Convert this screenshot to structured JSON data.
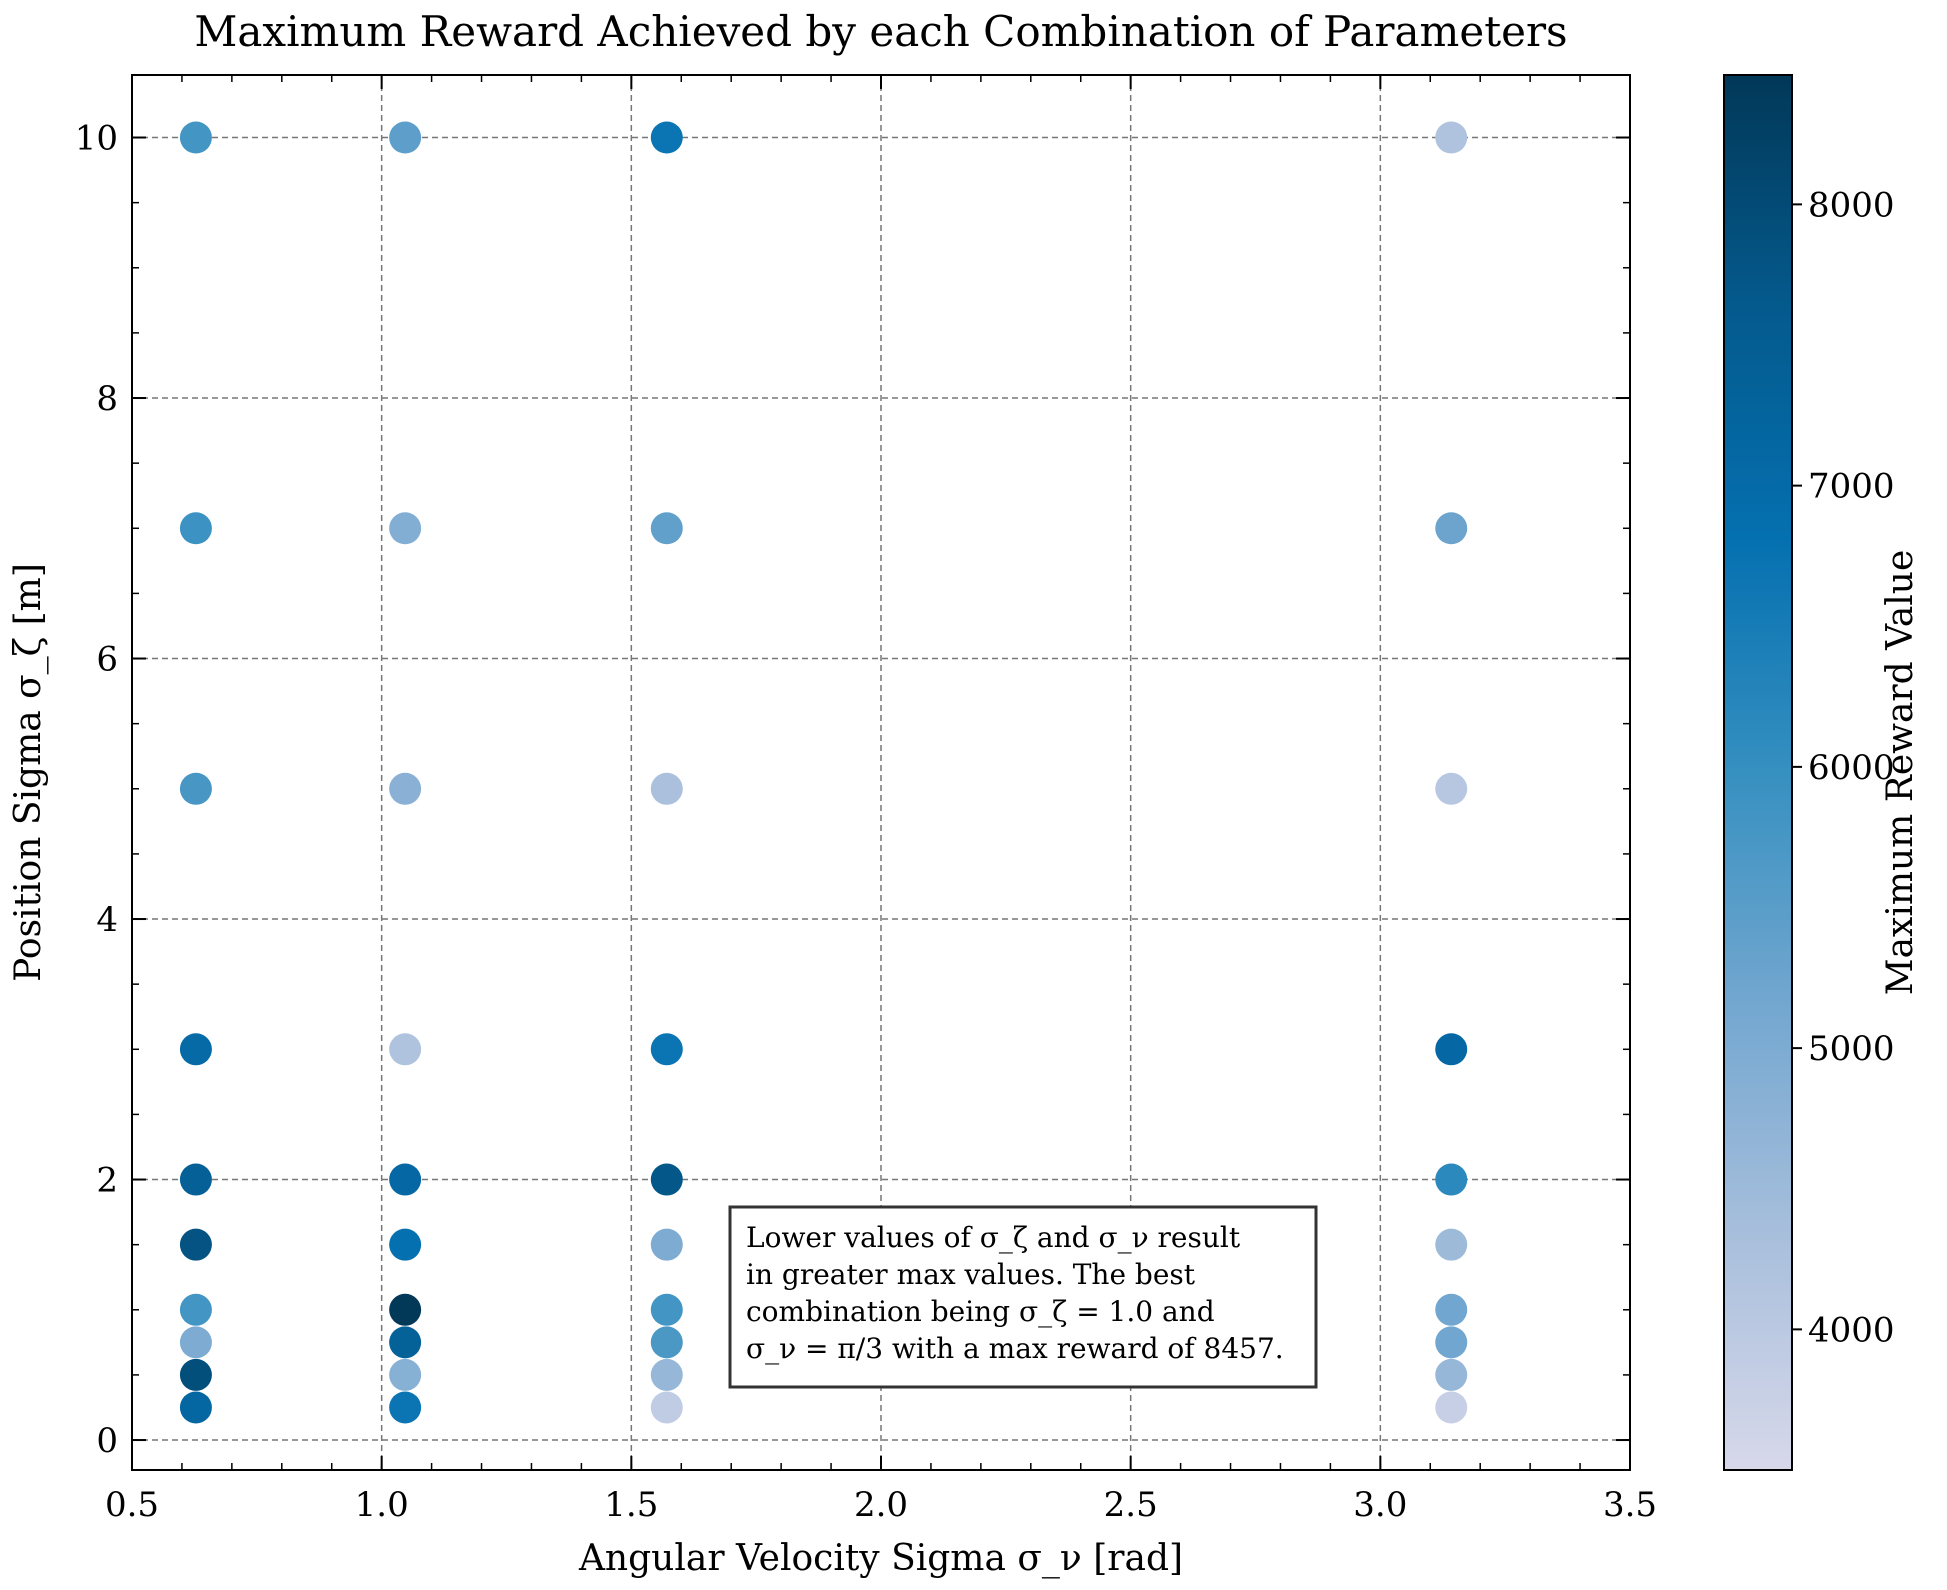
{
  "chart_data": {
    "type": "scatter",
    "title": "Maximum Reward Achieved by each Combination of Parameters",
    "xlabel": "Angular Velocity Sigma σ_ν [rad]",
    "ylabel": "Position Sigma σ_ζ [m]",
    "xlim": [
      0.5,
      3.5
    ],
    "ylim": [
      -0.23,
      10.48
    ],
    "xticks": [
      0.5,
      1.0,
      1.5,
      2.0,
      2.5,
      3.0,
      3.5
    ],
    "xtick_labels": [
      "0.5",
      "1.0",
      "1.5",
      "2.0",
      "2.5",
      "3.0",
      "3.5"
    ],
    "yticks": [
      0,
      2,
      4,
      6,
      8,
      10
    ],
    "ytick_labels": [
      "0",
      "2",
      "4",
      "6",
      "8",
      "10"
    ],
    "grid": true,
    "colorbar": {
      "label": "Maximum Reward Value",
      "range": [
        3500,
        8460
      ],
      "ticks": [
        4000,
        5000,
        6000,
        7000,
        8000
      ],
      "tick_labels": [
        "4000",
        "5000",
        "6000",
        "7000",
        "8000"
      ],
      "colors": [
        "#d7d8ea",
        "#a8bfdc",
        "#73a7d0",
        "#3690c0",
        "#0570b0",
        "#045a8d",
        "#023858"
      ]
    },
    "annotation": [
      "Lower values of σ_ζ and σ_ν result",
      "in greater max values. The best",
      "combination being σ_ζ = 1.0 and",
      "σ_ν = π/3 with a max reward of 8457."
    ],
    "points": [
      {
        "x": 0.628,
        "y": 10,
        "value": 5800
      },
      {
        "x": 0.628,
        "y": 7,
        "value": 5900
      },
      {
        "x": 0.628,
        "y": 5,
        "value": 5750
      },
      {
        "x": 0.628,
        "y": 3,
        "value": 7050
      },
      {
        "x": 0.628,
        "y": 2,
        "value": 7400
      },
      {
        "x": 0.628,
        "y": 1.5,
        "value": 7800
      },
      {
        "x": 0.628,
        "y": 1,
        "value": 5800
      },
      {
        "x": 0.628,
        "y": 0.75,
        "value": 5000
      },
      {
        "x": 0.628,
        "y": 0.5,
        "value": 7900
      },
      {
        "x": 0.628,
        "y": 0.25,
        "value": 7150
      },
      {
        "x": 1.047,
        "y": 10,
        "value": 5450
      },
      {
        "x": 1.047,
        "y": 7,
        "value": 4900
      },
      {
        "x": 1.047,
        "y": 5,
        "value": 4800
      },
      {
        "x": 1.047,
        "y": 3,
        "value": 4200
      },
      {
        "x": 1.047,
        "y": 2,
        "value": 7100
      },
      {
        "x": 1.047,
        "y": 1.5,
        "value": 6800
      },
      {
        "x": 1.047,
        "y": 1,
        "value": 8457
      },
      {
        "x": 1.047,
        "y": 0.75,
        "value": 7350
      },
      {
        "x": 1.047,
        "y": 0.5,
        "value": 4850
      },
      {
        "x": 1.047,
        "y": 0.25,
        "value": 6700
      },
      {
        "x": 1.571,
        "y": 10,
        "value": 6700
      },
      {
        "x": 1.571,
        "y": 7,
        "value": 5400
      },
      {
        "x": 1.571,
        "y": 5,
        "value": 4300
      },
      {
        "x": 1.571,
        "y": 3,
        "value": 6700
      },
      {
        "x": 1.571,
        "y": 2,
        "value": 7700
      },
      {
        "x": 1.571,
        "y": 1.5,
        "value": 5000
      },
      {
        "x": 1.571,
        "y": 1,
        "value": 5800
      },
      {
        "x": 1.571,
        "y": 0.75,
        "value": 5700
      },
      {
        "x": 1.571,
        "y": 0.5,
        "value": 4600
      },
      {
        "x": 1.571,
        "y": 0.25,
        "value": 3900
      },
      {
        "x": 3.142,
        "y": 10,
        "value": 4200
      },
      {
        "x": 3.142,
        "y": 7,
        "value": 5250
      },
      {
        "x": 3.142,
        "y": 5,
        "value": 4050
      },
      {
        "x": 3.142,
        "y": 3,
        "value": 7100
      },
      {
        "x": 3.142,
        "y": 2,
        "value": 6150
      },
      {
        "x": 3.142,
        "y": 1.5,
        "value": 4500
      },
      {
        "x": 3.142,
        "y": 1,
        "value": 5200
      },
      {
        "x": 3.142,
        "y": 0.75,
        "value": 5200
      },
      {
        "x": 3.142,
        "y": 0.5,
        "value": 4600
      },
      {
        "x": 3.142,
        "y": 0.25,
        "value": 3800
      }
    ]
  }
}
